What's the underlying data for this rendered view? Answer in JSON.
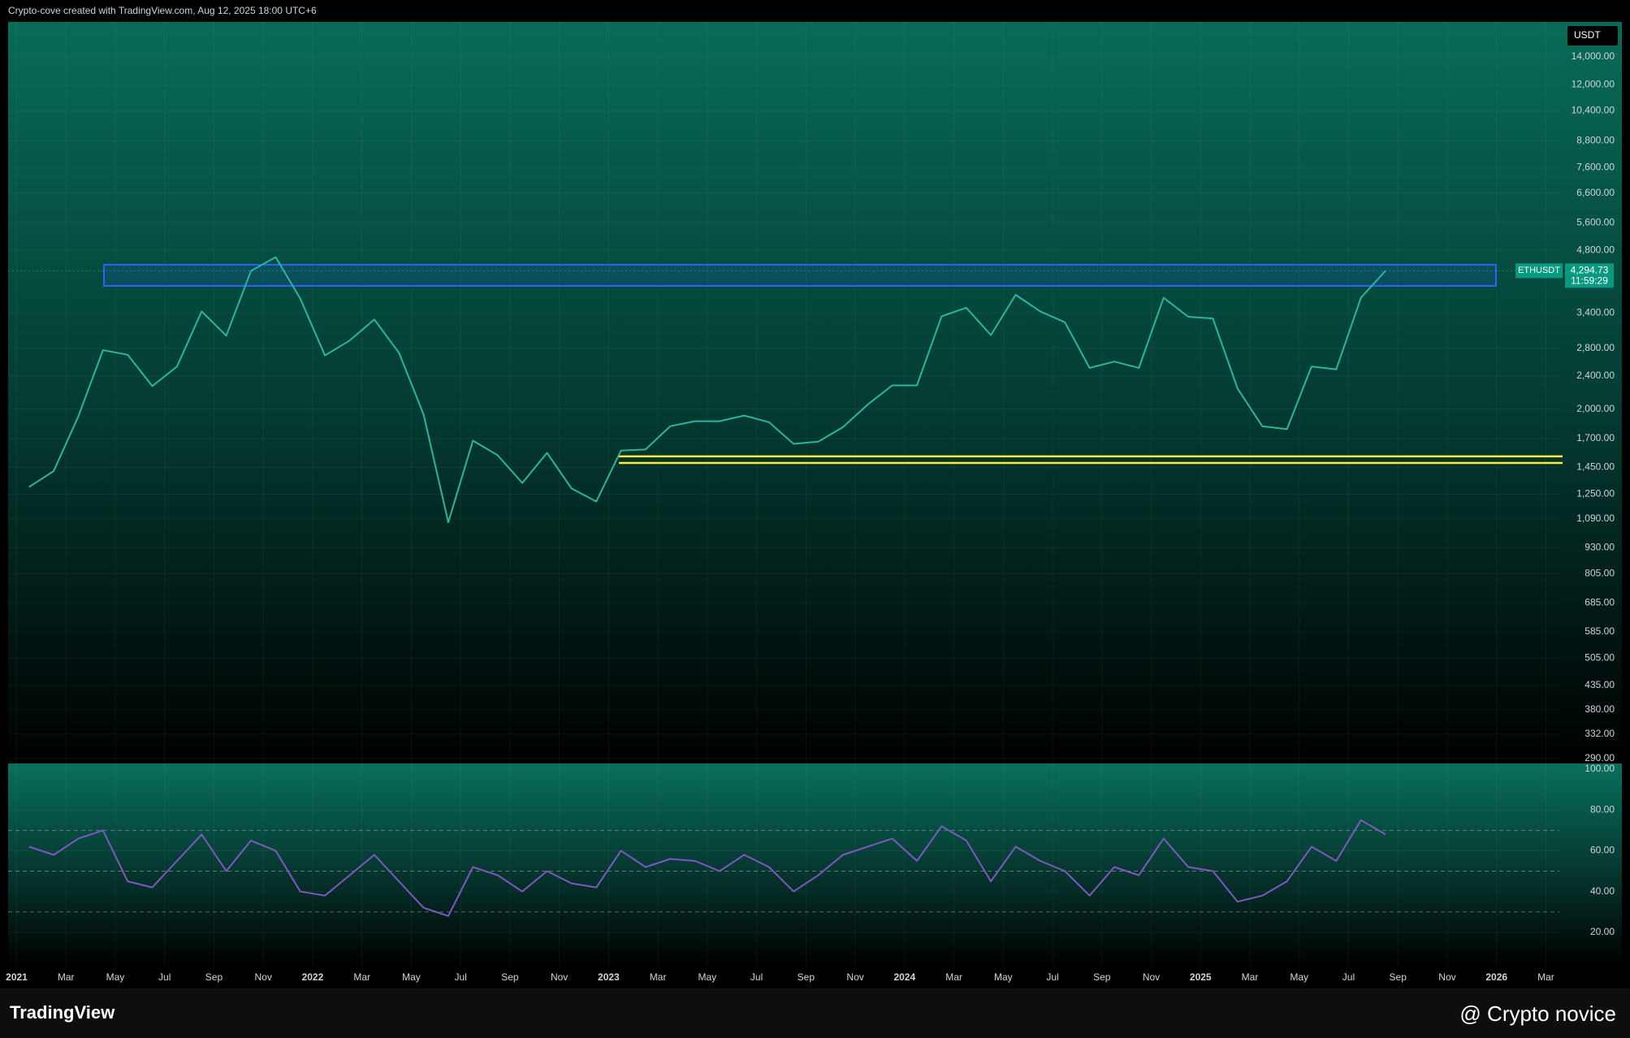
{
  "header": {
    "text": "Crypto-cove created with TradingView.com, Aug 12, 2025 18:00 UTC+6"
  },
  "footer": {
    "brand": "TradingView",
    "author": "@ Crypto novice"
  },
  "chart_data": [
    {
      "type": "line",
      "name": "ETHUSDT",
      "currency": "USDT",
      "log_scale": true,
      "grid": true,
      "color": "#2bb5a0",
      "categories": [
        "2021",
        null,
        "Mar",
        null,
        "May",
        null,
        "Jul",
        null,
        "Sep",
        null,
        "Nov",
        null,
        "2022",
        null,
        "Mar",
        null,
        "May",
        null,
        "Jul",
        null,
        "Sep",
        null,
        "Nov",
        null,
        "2023",
        null,
        "Mar",
        null,
        "May",
        null,
        "Jul",
        null,
        "Sep",
        null,
        "Nov",
        null,
        "2024",
        null,
        "Mar",
        null,
        "May",
        null,
        "Jul",
        null,
        "Sep",
        null,
        "Nov",
        null,
        "2025",
        null,
        "Mar",
        null,
        "May",
        null,
        "Jul",
        null,
        "Sep",
        null,
        "Nov",
        null,
        "2026",
        null,
        "Mar"
      ],
      "values": [
        1300,
        1420,
        1920,
        2770,
        2700,
        2270,
        2530,
        3430,
        3000,
        4290,
        4630,
        3680,
        2690,
        2920,
        3280,
        2730,
        1940,
        1070,
        1680,
        1550,
        1330,
        1570,
        1290,
        1200,
        1590,
        1600,
        1820,
        1870,
        1870,
        1930,
        1860,
        1650,
        1670,
        1810,
        2050,
        2280,
        2280,
        3340,
        3500,
        3010,
        3760,
        3430,
        3230,
        2510,
        2600,
        2510,
        3700,
        3330,
        3300,
        2240,
        1820,
        1790,
        2530,
        2490,
        3700,
        4294.73,
        null,
        null,
        null,
        null,
        null,
        null,
        null
      ],
      "last_price": 4294.73,
      "last_price_label": "4,294.73",
      "countdown": "11:59:29",
      "zones": [
        {
          "low": 3950,
          "high": 4440,
          "color": "#2962ff"
        },
        {
          "low": 1485,
          "high": 1540,
          "color": "#ffeb3b"
        }
      ],
      "ylim": [
        290,
        14000
      ],
      "yticks": [
        {
          "value": 14000,
          "label": "14,000.00"
        },
        {
          "value": 12000,
          "label": "12,000.00"
        },
        {
          "value": 10400,
          "label": "10,400.00"
        },
        {
          "value": 8800,
          "label": "8,800.00"
        },
        {
          "value": 7600,
          "label": "7,600.00"
        },
        {
          "value": 6600,
          "label": "6,600.00"
        },
        {
          "value": 5600,
          "label": "5,600.00"
        },
        {
          "value": 4800,
          "label": "4,800.00"
        },
        {
          "value": 3400,
          "label": "3,400.00"
        },
        {
          "value": 2800,
          "label": "2,800.00"
        },
        {
          "value": 2400,
          "label": "2,400.00"
        },
        {
          "value": 2000,
          "label": "2,000.00"
        },
        {
          "value": 1700,
          "label": "1,700.00"
        },
        {
          "value": 1450,
          "label": "1,450.00"
        },
        {
          "value": 1250,
          "label": "1,250.00"
        },
        {
          "value": 1090,
          "label": "1,090.00"
        },
        {
          "value": 930,
          "label": "930.00"
        },
        {
          "value": 805,
          "label": "805.00"
        },
        {
          "value": 685,
          "label": "685.00"
        },
        {
          "value": 585,
          "label": "585.00"
        },
        {
          "value": 505,
          "label": "505.00"
        },
        {
          "value": 435,
          "label": "435.00"
        },
        {
          "value": 380,
          "label": "380.00"
        },
        {
          "value": 332,
          "label": "332.00"
        },
        {
          "value": 290,
          "label": "290.00"
        }
      ]
    },
    {
      "type": "line",
      "name": "RSI",
      "grid": true,
      "color": "#7e57c2",
      "values": [
        62,
        58,
        66,
        70,
        45,
        42,
        55,
        68,
        50,
        65,
        60,
        40,
        38,
        48,
        58,
        45,
        32,
        28,
        52,
        48,
        40,
        50,
        44,
        42,
        60,
        52,
        56,
        55,
        50,
        58,
        52,
        40,
        48,
        58,
        62,
        66,
        55,
        72,
        65,
        45,
        62,
        55,
        50,
        38,
        52,
        48,
        66,
        52,
        50,
        35,
        38,
        45,
        62,
        55,
        75,
        68,
        null,
        null,
        null,
        null,
        null,
        null,
        null
      ],
      "levels": [
        70,
        50,
        30
      ],
      "ylim": [
        6,
        102
      ],
      "yticks": [
        {
          "value": 100,
          "label": "100.00"
        },
        {
          "value": 80,
          "label": "80.00"
        },
        {
          "value": 60,
          "label": "60.00"
        },
        {
          "value": 40,
          "label": "40.00"
        },
        {
          "value": 20,
          "label": "20.00"
        }
      ]
    }
  ]
}
